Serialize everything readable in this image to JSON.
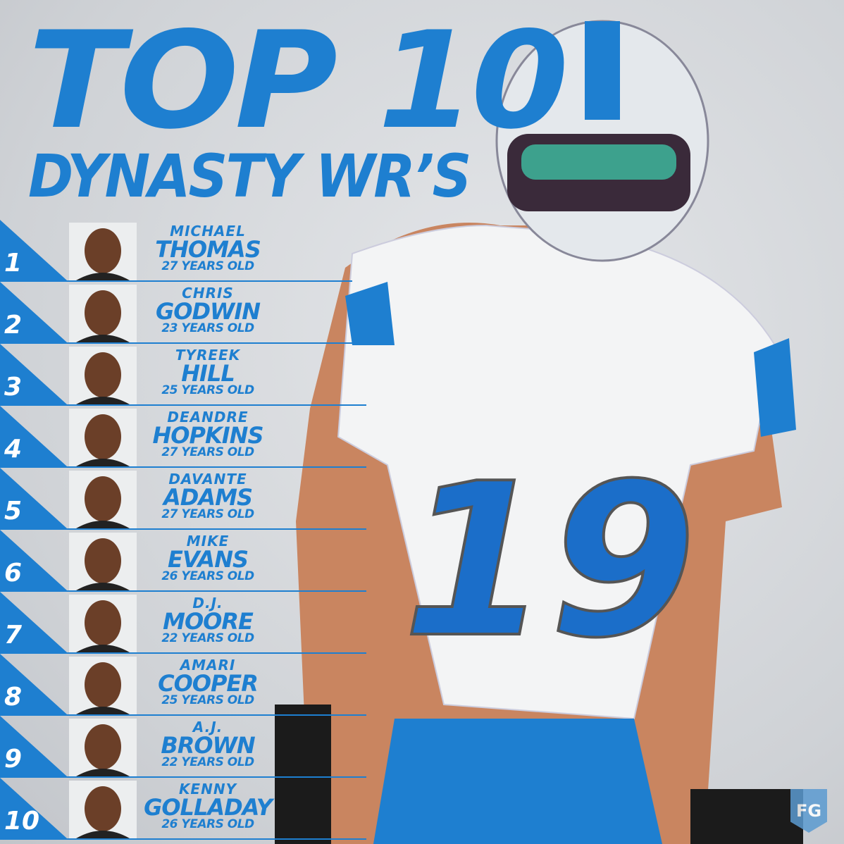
{
  "header": {
    "title": "TOP 10",
    "subtitle": "DYNASTY WR’S"
  },
  "players": [
    {
      "rank": "1",
      "first": "MICHAEL",
      "last": "THOMAS",
      "age": "27 YEARS OLD"
    },
    {
      "rank": "2",
      "first": "CHRIS",
      "last": "GODWIN",
      "age": "23 YEARS OLD"
    },
    {
      "rank": "3",
      "first": "TYREEK",
      "last": "HILL",
      "age": "25 YEARS OLD"
    },
    {
      "rank": "4",
      "first": "DEANDRE",
      "last": "HOPKINS",
      "age": "27 YEARS OLD"
    },
    {
      "rank": "5",
      "first": "DAVANTE",
      "last": "ADAMS",
      "age": "27 YEARS OLD"
    },
    {
      "rank": "6",
      "first": "MIKE",
      "last": "EVANS",
      "age": "26 YEARS OLD"
    },
    {
      "rank": "7",
      "first": "D.J.",
      "last": "MOORE",
      "age": "22 YEARS OLD"
    },
    {
      "rank": "8",
      "first": "AMARI",
      "last": "COOPER",
      "age": "25 YEARS OLD"
    },
    {
      "rank": "9",
      "first": "A.J.",
      "last": "BROWN",
      "age": "22 YEARS OLD"
    },
    {
      "rank": "10",
      "first": "KENNY",
      "last": "GOLLADAY",
      "age": "26 YEARS OLD"
    }
  ],
  "logo": "FG"
}
